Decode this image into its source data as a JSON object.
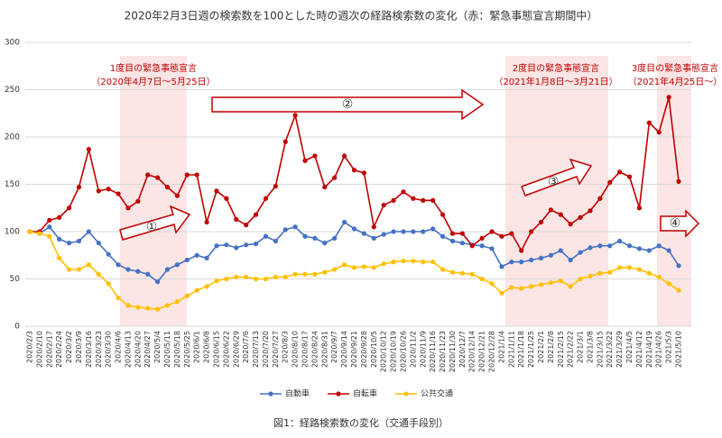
{
  "chart_data": {
    "type": "line",
    "title": "2020年2月3日週の検索数を100とした時の週次の経路検索数の変化（赤：緊急事態宣言期間中）",
    "caption": "図1：経路検索数の変化（交通手段別）",
    "annotations": [
      "1度目の緊急事態宣言",
      "（2020年4月7日～5月25日）",
      "2度目の緊急事態宣言",
      "（2021年1月8日～3月21日）",
      "3度目の緊急事態宣言",
      "（2021年4月25日～）",
      "①",
      "②",
      "③",
      "④"
    ],
    "categories": [
      "2020/2/3",
      "2020/2/10",
      "2020/2/17",
      "2020/2/24",
      "2020/3/2",
      "2020/3/9",
      "2020/3/16",
      "2020/3/23",
      "2020/3/30",
      "2020/4/6",
      "2020/4/13",
      "2020/4/20",
      "2020/4/27",
      "2020/5/4",
      "2020/5/11",
      "2020/5/18",
      "2020/5/25",
      "2020/6/1",
      "2020/6/8",
      "2020/6/15",
      "2020/6/22",
      "2020/6/29",
      "2020/7/6",
      "2020/7/13",
      "2020/7/20",
      "2020/7/27",
      "2020/8/3",
      "2020/8/10",
      "2020/8/17",
      "2020/8/24",
      "2020/8/31",
      "2020/9/7",
      "2020/9/14",
      "2020/9/21",
      "2020/9/28",
      "2020/10/5",
      "2020/10/12",
      "2020/10/19",
      "2020/10/26",
      "2020/11/2",
      "2020/11/9",
      "2020/11/16",
      "2020/11/23",
      "2020/11/30",
      "2020/12/7",
      "2020/12/14",
      "2020/12/21",
      "2020/12/28",
      "2021/1/4",
      "2021/1/11",
      "2021/1/18",
      "2021/1/25",
      "2021/2/1",
      "2021/2/8",
      "2021/2/15",
      "2021/2/22",
      "2021/3/1",
      "2021/3/8",
      "2021/3/15",
      "2021/3/22",
      "2021/3/29",
      "2021/4/5",
      "2021/4/12",
      "2021/4/19",
      "2021/4/26",
      "2021/5/3",
      "2021/5/10"
    ],
    "series": [
      {
        "name": "自動車",
        "color": "#4472c4",
        "values": [
          100,
          98,
          105,
          92,
          88,
          90,
          100,
          88,
          76,
          65,
          60,
          58,
          55,
          47,
          60,
          65,
          70,
          75,
          72,
          85,
          86,
          83,
          86,
          87,
          95,
          90,
          102,
          105,
          95,
          93,
          88,
          93,
          110,
          103,
          98,
          93,
          97,
          100,
          100,
          100,
          100,
          103,
          95,
          90,
          88,
          86,
          85,
          82,
          63,
          68,
          68,
          70,
          72,
          75,
          80,
          70,
          78,
          83,
          85,
          85,
          90,
          85,
          82,
          80,
          85,
          80,
          64
        ]
      },
      {
        "name": "自転車",
        "color": "#c00000",
        "values": [
          100,
          100,
          112,
          115,
          125,
          147,
          187,
          143,
          145,
          140,
          125,
          132,
          160,
          157,
          147,
          138,
          160,
          160,
          110,
          143,
          135,
          113,
          107,
          118,
          135,
          148,
          195,
          223,
          175,
          180,
          147,
          157,
          180,
          165,
          162,
          105,
          128,
          133,
          142,
          135,
          133,
          133,
          118,
          98,
          98,
          85,
          93,
          100,
          95,
          98,
          80,
          100,
          110,
          123,
          118,
          108,
          115,
          122,
          135,
          152,
          163,
          158,
          125,
          215,
          205,
          242,
          153
        ]
      },
      {
        "name": "公共交通",
        "color": "#ffc000",
        "values": [
          100,
          98,
          95,
          72,
          60,
          60,
          65,
          55,
          45,
          30,
          22,
          20,
          19,
          18,
          22,
          26,
          32,
          38,
          42,
          48,
          50,
          52,
          52,
          50,
          50,
          52,
          52,
          55,
          55,
          55,
          57,
          60,
          65,
          62,
          63,
          62,
          66,
          68,
          69,
          69,
          68,
          68,
          60,
          57,
          56,
          55,
          50,
          45,
          35,
          41,
          40,
          42,
          44,
          46,
          48,
          42,
          50,
          53,
          56,
          57,
          62,
          62,
          60,
          56,
          52,
          45,
          38
        ]
      }
    ],
    "ylim": [
      0,
      300
    ],
    "yticks": [
      0,
      50,
      100,
      150,
      200,
      250,
      300
    ],
    "grid": true,
    "legend": "bottom"
  }
}
